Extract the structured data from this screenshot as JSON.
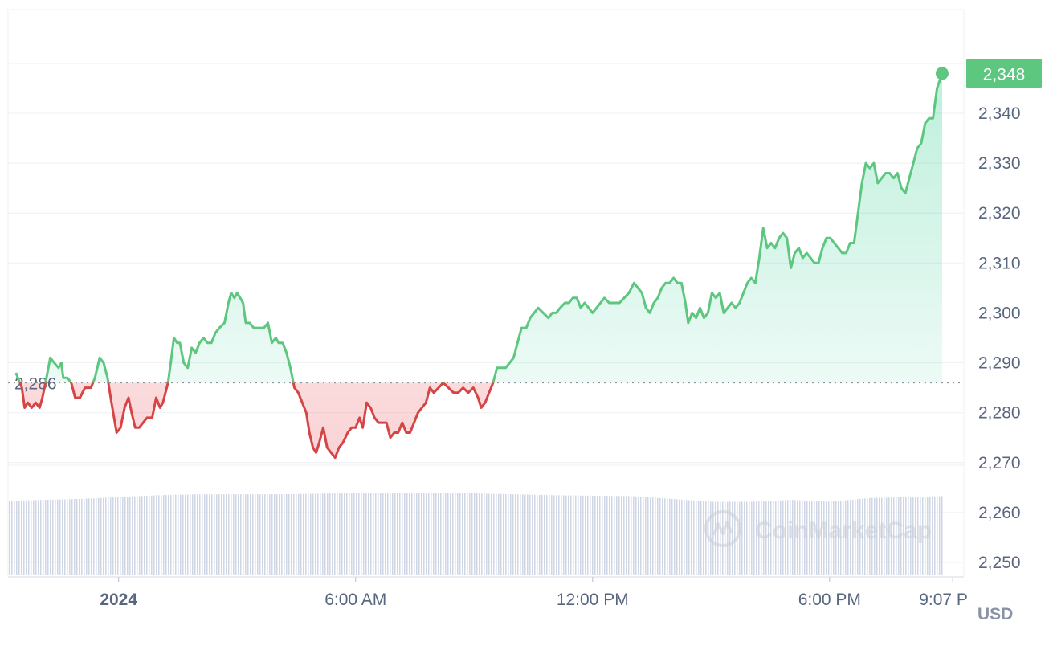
{
  "chart_data": {
    "type": "area",
    "currency_label": "USD",
    "current_price_label": "2,348",
    "current_price": 2348,
    "baseline_label": "2,286",
    "baseline": 2286,
    "ylim": [
      2247,
      2359
    ],
    "y_ticks": [
      2250,
      2260,
      2270,
      2280,
      2290,
      2300,
      2310,
      2320,
      2330,
      2340
    ],
    "y_tick_labels": [
      "2,250",
      "2,260",
      "2,270",
      "2,280",
      "2,290",
      "2,300",
      "2,310",
      "2,320",
      "2,330",
      "2,340"
    ],
    "x_range_hours": [
      -2.8,
      21.4
    ],
    "x_ticks": [
      {
        "label": "2024",
        "hour": 0,
        "bold": true
      },
      {
        "label": "6:00 AM",
        "hour": 6,
        "bold": false
      },
      {
        "label": "12:00 PM",
        "hour": 12,
        "bold": false
      },
      {
        "label": "6:00 PM",
        "hour": 18,
        "bold": false
      },
      {
        "label": "9:07 P",
        "hour": 21.12,
        "bold": false
      }
    ],
    "price_series": [
      [
        -2.6,
        2288
      ],
      [
        -2.45,
        2285
      ],
      [
        -2.38,
        2281
      ],
      [
        -2.3,
        2282
      ],
      [
        -2.2,
        2281
      ],
      [
        -2.1,
        2282
      ],
      [
        -2.0,
        2281
      ],
      [
        -1.93,
        2283
      ],
      [
        -1.85,
        2286
      ],
      [
        -1.73,
        2291
      ],
      [
        -1.63,
        2290
      ],
      [
        -1.52,
        2289
      ],
      [
        -1.45,
        2290
      ],
      [
        -1.4,
        2287
      ],
      [
        -1.3,
        2287
      ],
      [
        -1.2,
        2286
      ],
      [
        -1.1,
        2283
      ],
      [
        -0.98,
        2283
      ],
      [
        -0.85,
        2285
      ],
      [
        -0.7,
        2285
      ],
      [
        -0.6,
        2287
      ],
      [
        -0.48,
        2291
      ],
      [
        -0.38,
        2290
      ],
      [
        -0.28,
        2287
      ],
      [
        -0.18,
        2282
      ],
      [
        -0.05,
        2276
      ],
      [
        0.05,
        2277
      ],
      [
        0.15,
        2281
      ],
      [
        0.25,
        2283
      ],
      [
        0.33,
        2280
      ],
      [
        0.42,
        2277
      ],
      [
        0.52,
        2277
      ],
      [
        0.62,
        2278
      ],
      [
        0.72,
        2279
      ],
      [
        0.85,
        2279
      ],
      [
        0.95,
        2283
      ],
      [
        1.05,
        2281
      ],
      [
        1.12,
        2282
      ],
      [
        1.25,
        2286
      ],
      [
        1.32,
        2290
      ],
      [
        1.4,
        2295
      ],
      [
        1.48,
        2294
      ],
      [
        1.55,
        2294
      ],
      [
        1.65,
        2290
      ],
      [
        1.75,
        2289
      ],
      [
        1.85,
        2293
      ],
      [
        1.95,
        2292
      ],
      [
        2.05,
        2294
      ],
      [
        2.15,
        2295
      ],
      [
        2.25,
        2294
      ],
      [
        2.35,
        2294
      ],
      [
        2.45,
        2296
      ],
      [
        2.55,
        2297
      ],
      [
        2.68,
        2298
      ],
      [
        2.78,
        2302
      ],
      [
        2.85,
        2304
      ],
      [
        2.93,
        2303
      ],
      [
        3.0,
        2304
      ],
      [
        3.08,
        2303
      ],
      [
        3.15,
        2302
      ],
      [
        3.22,
        2298
      ],
      [
        3.32,
        2298
      ],
      [
        3.42,
        2297
      ],
      [
        3.55,
        2297
      ],
      [
        3.68,
        2297
      ],
      [
        3.78,
        2298
      ],
      [
        3.88,
        2294
      ],
      [
        3.98,
        2295
      ],
      [
        4.05,
        2294
      ],
      [
        4.15,
        2294
      ],
      [
        4.25,
        2292
      ],
      [
        4.35,
        2289
      ],
      [
        4.45,
        2285
      ],
      [
        4.55,
        2284
      ],
      [
        4.65,
        2282
      ],
      [
        4.75,
        2280
      ],
      [
        4.83,
        2276
      ],
      [
        4.92,
        2273
      ],
      [
        5.0,
        2272
      ],
      [
        5.08,
        2274
      ],
      [
        5.18,
        2277
      ],
      [
        5.28,
        2273
      ],
      [
        5.38,
        2272
      ],
      [
        5.48,
        2271
      ],
      [
        5.58,
        2273
      ],
      [
        5.68,
        2274
      ],
      [
        5.8,
        2276
      ],
      [
        5.9,
        2277
      ],
      [
        6.0,
        2277
      ],
      [
        6.1,
        2279
      ],
      [
        6.18,
        2277
      ],
      [
        6.28,
        2282
      ],
      [
        6.38,
        2281
      ],
      [
        6.48,
        2279
      ],
      [
        6.58,
        2278
      ],
      [
        6.68,
        2278
      ],
      [
        6.78,
        2278
      ],
      [
        6.88,
        2275
      ],
      [
        6.98,
        2276
      ],
      [
        7.08,
        2276
      ],
      [
        7.18,
        2278
      ],
      [
        7.28,
        2276
      ],
      [
        7.38,
        2276
      ],
      [
        7.48,
        2278
      ],
      [
        7.58,
        2280
      ],
      [
        7.68,
        2281
      ],
      [
        7.78,
        2282
      ],
      [
        7.88,
        2285
      ],
      [
        7.98,
        2284
      ],
      [
        8.1,
        2285
      ],
      [
        8.22,
        2286
      ],
      [
        8.35,
        2285
      ],
      [
        8.48,
        2284
      ],
      [
        8.6,
        2284
      ],
      [
        8.72,
        2285
      ],
      [
        8.85,
        2284
      ],
      [
        8.98,
        2285
      ],
      [
        9.1,
        2283
      ],
      [
        9.18,
        2281
      ],
      [
        9.28,
        2282
      ],
      [
        9.38,
        2284
      ],
      [
        9.48,
        2286
      ],
      [
        9.58,
        2289
      ],
      [
        9.68,
        2289
      ],
      [
        9.8,
        2289
      ],
      [
        9.9,
        2290
      ],
      [
        10.0,
        2291
      ],
      [
        10.1,
        2294
      ],
      [
        10.2,
        2297
      ],
      [
        10.32,
        2297
      ],
      [
        10.42,
        2299
      ],
      [
        10.52,
        2300
      ],
      [
        10.62,
        2301
      ],
      [
        10.75,
        2300
      ],
      [
        10.88,
        2299
      ],
      [
        10.98,
        2300
      ],
      [
        11.08,
        2300
      ],
      [
        11.18,
        2301
      ],
      [
        11.3,
        2302
      ],
      [
        11.4,
        2302
      ],
      [
        11.5,
        2303
      ],
      [
        11.6,
        2303
      ],
      [
        11.7,
        2301
      ],
      [
        11.8,
        2302
      ],
      [
        11.9,
        2301
      ],
      [
        12.0,
        2300
      ],
      [
        12.1,
        2301
      ],
      [
        12.2,
        2302
      ],
      [
        12.3,
        2303
      ],
      [
        12.42,
        2302
      ],
      [
        12.55,
        2302
      ],
      [
        12.68,
        2302
      ],
      [
        12.8,
        2303
      ],
      [
        12.92,
        2304
      ],
      [
        13.05,
        2306
      ],
      [
        13.15,
        2305
      ],
      [
        13.25,
        2304
      ],
      [
        13.35,
        2301
      ],
      [
        13.45,
        2300
      ],
      [
        13.55,
        2302
      ],
      [
        13.65,
        2303
      ],
      [
        13.75,
        2305
      ],
      [
        13.85,
        2306
      ],
      [
        13.95,
        2306
      ],
      [
        14.05,
        2307
      ],
      [
        14.15,
        2306
      ],
      [
        14.25,
        2306
      ],
      [
        14.35,
        2302
      ],
      [
        14.42,
        2298
      ],
      [
        14.52,
        2300
      ],
      [
        14.62,
        2299
      ],
      [
        14.72,
        2301
      ],
      [
        14.82,
        2299
      ],
      [
        14.92,
        2300
      ],
      [
        15.02,
        2304
      ],
      [
        15.12,
        2303
      ],
      [
        15.22,
        2304
      ],
      [
        15.32,
        2300
      ],
      [
        15.42,
        2301
      ],
      [
        15.52,
        2302
      ],
      [
        15.62,
        2301
      ],
      [
        15.72,
        2302
      ],
      [
        15.82,
        2304
      ],
      [
        15.92,
        2306
      ],
      [
        16.02,
        2307
      ],
      [
        16.12,
        2306
      ],
      [
        16.22,
        2311
      ],
      [
        16.32,
        2317
      ],
      [
        16.42,
        2313
      ],
      [
        16.52,
        2314
      ],
      [
        16.62,
        2313
      ],
      [
        16.72,
        2315
      ],
      [
        16.82,
        2316
      ],
      [
        16.92,
        2315
      ],
      [
        17.02,
        2309
      ],
      [
        17.12,
        2312
      ],
      [
        17.22,
        2313
      ],
      [
        17.32,
        2311
      ],
      [
        17.42,
        2312
      ],
      [
        17.52,
        2311
      ],
      [
        17.62,
        2310
      ],
      [
        17.72,
        2310
      ],
      [
        17.82,
        2313
      ],
      [
        17.92,
        2315
      ],
      [
        18.02,
        2315
      ],
      [
        18.12,
        2314
      ],
      [
        18.22,
        2313
      ],
      [
        18.32,
        2312
      ],
      [
        18.42,
        2312
      ],
      [
        18.52,
        2314
      ],
      [
        18.62,
        2314
      ],
      [
        18.72,
        2320
      ],
      [
        18.82,
        2326
      ],
      [
        18.92,
        2330
      ],
      [
        19.02,
        2329
      ],
      [
        19.12,
        2330
      ],
      [
        19.22,
        2326
      ],
      [
        19.32,
        2327
      ],
      [
        19.42,
        2328
      ],
      [
        19.52,
        2328
      ],
      [
        19.62,
        2327
      ],
      [
        19.72,
        2328
      ],
      [
        19.82,
        2325
      ],
      [
        19.92,
        2324
      ],
      [
        20.02,
        2327
      ],
      [
        20.12,
        2330
      ],
      [
        20.22,
        2333
      ],
      [
        20.32,
        2334
      ],
      [
        20.42,
        2338
      ],
      [
        20.52,
        2339
      ],
      [
        20.62,
        2339
      ],
      [
        20.72,
        2345
      ],
      [
        20.85,
        2348
      ]
    ],
    "volume_series": [
      [
        -2.8,
        0.8
      ],
      [
        -1.0,
        0.82
      ],
      [
        1.0,
        0.86
      ],
      [
        2.0,
        0.87
      ],
      [
        4.0,
        0.87
      ],
      [
        5.5,
        0.88
      ],
      [
        7.0,
        0.88
      ],
      [
        9.0,
        0.88
      ],
      [
        11.0,
        0.86
      ],
      [
        13.0,
        0.85
      ],
      [
        15.0,
        0.79
      ],
      [
        16.0,
        0.79
      ],
      [
        17.0,
        0.81
      ],
      [
        18.0,
        0.79
      ],
      [
        19.0,
        0.83
      ],
      [
        20.0,
        0.84
      ],
      [
        20.85,
        0.85
      ]
    ]
  },
  "watermark": {
    "text": "CoinMarketCap",
    "icon": "coinmarketcap-logo-icon"
  },
  "colors": {
    "up": "#16c784",
    "up_line": "#5dc67f",
    "down": "#ea3943",
    "down_line": "#d64545",
    "grid": "#eff2f5",
    "volume": "#cfd6e4",
    "axis_text": "#58667e"
  }
}
